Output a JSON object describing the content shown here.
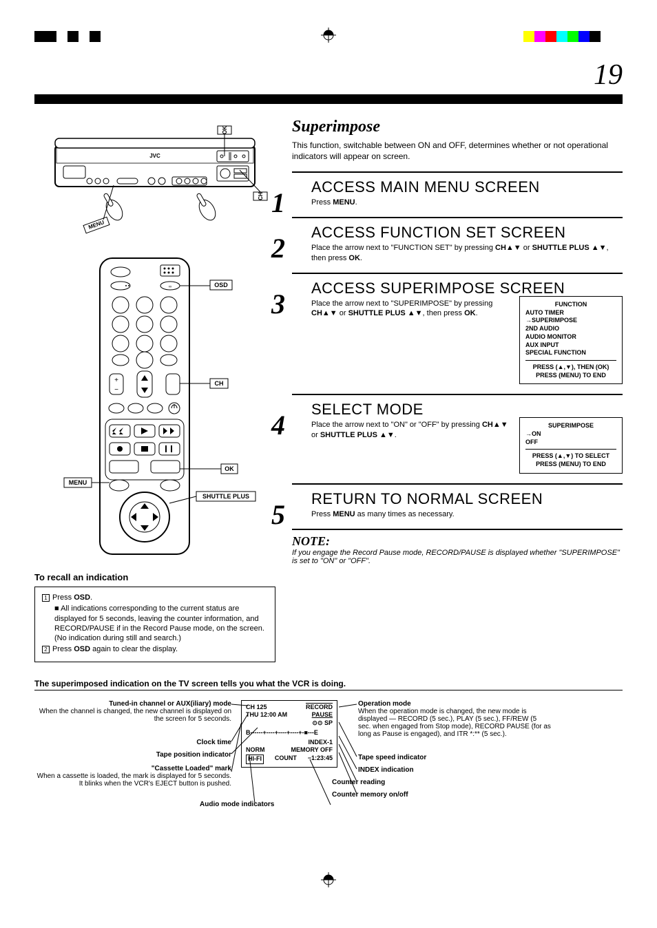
{
  "topmarks": {
    "left_colors": [
      "#000000",
      "#000000",
      "#ffffff",
      "#000000",
      "#ffffff",
      "#000000",
      "#ffffff",
      "#ffffff",
      "#ffffff",
      "#ffffff"
    ],
    "right_colors": [
      "#ffffff",
      "#ffff00",
      "#ff00ff",
      "#ff0000",
      "#00ffff",
      "#00ff00",
      "#0000ff",
      "#000000",
      "#ffffff",
      "#ffffff"
    ]
  },
  "page_number": "19",
  "title": "Superimpose",
  "intro": "This function, switchable between ON and OFF, determines whether or not operational indicators will appear on screen.",
  "steps": [
    {
      "num": "1",
      "head": "ACCESS MAIN MENU SCREEN",
      "body": "Press <b>MENU</b>."
    },
    {
      "num": "2",
      "head": "ACCESS FUNCTION SET SCREEN",
      "body": "Place the arrow next to \"FUNCTION SET\" by pressing <b>CH▲▼</b> or <b>SHUTTLE PLUS ▲▼</b>, then press <b>OK</b>."
    },
    {
      "num": "3",
      "head": "ACCESS SUPERIMPOSE SCREEN",
      "body": "Place the arrow next to \"SUPERIMPOSE\" by pressing <b>CH▲▼</b> or <b>SHUTTLE PLUS ▲▼</b>, then press <b>OK</b>.",
      "osd": {
        "title": "FUNCTION",
        "items": [
          "AUTO TIMER",
          "→SUPERIMPOSE",
          "2ND AUDIO",
          "AUDIO MONITOR",
          "AUX INPUT",
          "SPECIAL FUNCTION"
        ],
        "footer": "PRESS (▲,▼), THEN (OK)\nPRESS (MENU) TO END"
      }
    },
    {
      "num": "4",
      "head": "SELECT MODE",
      "body": "Place the arrow next to \"ON\" or \"OFF\" by pressing <b>CH▲▼</b> or <b>SHUTTLE PLUS ▲▼</b>.",
      "osd": {
        "title": "SUPERIMPOSE",
        "items": [
          "→ON",
          "OFF"
        ],
        "footer": "PRESS (▲,▼) TO SELECT\nPRESS (MENU) TO END"
      }
    },
    {
      "num": "5",
      "head": "RETURN TO NORMAL SCREEN",
      "body": "Press <b>MENU</b> as many times as necessary."
    }
  ],
  "note": {
    "title": "NOTE:",
    "body": "If you engage the Record Pause mode, RECORD/PAUSE is displayed whether \"SUPERIMPOSE\" is set to \"ON\" or \"OFF\"."
  },
  "recall": {
    "title": "To recall an indication",
    "items": [
      {
        "num": "1",
        "text": "Press <b>OSD</b>."
      },
      {
        "bullet": "■",
        "text": "All indications corresponding to the current status are displayed for 5 seconds, leaving the counter information, and RECORD/PAUSE if in the Record Pause mode, on the screen. (No indication during still and search.)"
      },
      {
        "num": "2",
        "text": "Press <b>OSD</b> again to clear the display."
      }
    ]
  },
  "remote_labels": {
    "osd": "OSD",
    "ch": "CH",
    "ok": "OK",
    "menu": "MENU",
    "shuttle": "SHUTTLE PLUS"
  },
  "vcr_labels": {
    "ok": "OK",
    "ch": "CH",
    "menu": "MENU",
    "brand": "JVC"
  },
  "bottom": {
    "title": "The superimposed indication on the TV screen tells you what the VCR is doing.",
    "tv": {
      "r1_l": "CH   125",
      "r1_r": "RECORD",
      "r2_l": "THU 12:00 AM",
      "r2_r": "PAUSE",
      "r3_r": "⊙⊙ SP",
      "tape": "B------+----+----+----+-■---E",
      "r4_r": "INDEX-1",
      "r5_l": "NORM",
      "r5_r": "MEMORY OFF",
      "r6_l": "HI-FI",
      "r6_m": "COUNT",
      "r6_r": "−1:23:45"
    },
    "labels": {
      "tuned": {
        "head": "Tuned-in channel or AUX(iliary) mode",
        "desc": "When the channel is changed, the new channel is displayed on the screen for 5 seconds."
      },
      "clock": {
        "head": "Clock time"
      },
      "tapepos": {
        "head": "Tape position indicator"
      },
      "cassette": {
        "head": "\"Cassette Loaded\" mark",
        "desc": "When a cassette is loaded, the mark is displayed for 5 seconds. It blinks when the VCR's EJECT button is pushed."
      },
      "audio": {
        "head": "Audio mode indicators"
      },
      "opmode": {
        "head": "Operation mode",
        "desc": "When the operation mode is changed, the new mode is displayed — RECORD (5 sec.), PLAY (5 sec.), FF/REW (5 sec. when engaged from Stop mode), RECORD PAUSE (for as long as Pause is engaged), and ITR *:** (5 sec.)."
      },
      "speed": {
        "head": "Tape speed indicator"
      },
      "index": {
        "head": "INDEX indication"
      },
      "counter": {
        "head": "Counter reading"
      },
      "memory": {
        "head": "Counter memory on/off"
      }
    }
  }
}
